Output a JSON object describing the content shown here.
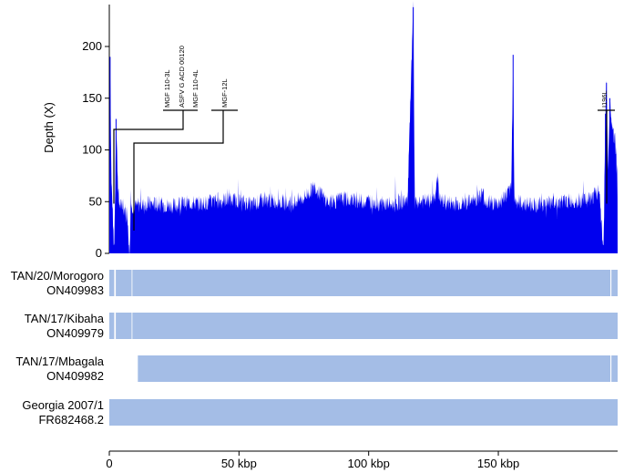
{
  "chart_data": {
    "type": "area",
    "ylabel": "Depth (X)",
    "xlabel": "",
    "y_ticks": [
      0,
      50,
      100,
      150,
      200
    ],
    "ylim": [
      0,
      240
    ],
    "x_ticks": [
      0,
      50,
      100,
      150
    ],
    "x_tick_labels": [
      "0",
      "50 kbp",
      "100 kbp",
      "150 kbp"
    ],
    "xlim_kbp": [
      0,
      196
    ],
    "color": "#0000ee",
    "bar_color": "#a4bde6",
    "coverage": {
      "baseline_depth": 47,
      "points_kbp": [
        0,
        0.3,
        0.8,
        1.2,
        1.8,
        2.2,
        2.6,
        3.0,
        3.4,
        3.8,
        4.5,
        5.2,
        6.0,
        7.0,
        7.6,
        7.9,
        8.2,
        8.6,
        10,
        15,
        20,
        25,
        30,
        35,
        40,
        45,
        50,
        55,
        60,
        65,
        70,
        75,
        79.5,
        80.5,
        85,
        90,
        95,
        100,
        105,
        110,
        115,
        117.2,
        117.8,
        118.4,
        120,
        125,
        126.8,
        127.2,
        130,
        135,
        140,
        144,
        145,
        150,
        155,
        155.7,
        156.2,
        156.8,
        160,
        165,
        170,
        175,
        180,
        185,
        189,
        190.5,
        191.3,
        191.7,
        192.3,
        193,
        194,
        195,
        196
      ],
      "depth_x": [
        55,
        190,
        70,
        48,
        0,
        50,
        130,
        95,
        62,
        48,
        46,
        44,
        42,
        40,
        0,
        0,
        50,
        45,
        46,
        48,
        47,
        46,
        49,
        48,
        50,
        52,
        51,
        47,
        52,
        50,
        48,
        54,
        65,
        60,
        48,
        53,
        51,
        50,
        48,
        47,
        52,
        238,
        45,
        50,
        50,
        51,
        75,
        52,
        49,
        48,
        50,
        58,
        50,
        48,
        62,
        192,
        52,
        50,
        48,
        47,
        49,
        50,
        51,
        52,
        60,
        0,
        135,
        165,
        80,
        150,
        120,
        110,
        65
      ]
    },
    "gene_annotations": [
      {
        "label": "MGF 110-3L",
        "position_kbp": 2.2
      },
      {
        "label": "ASFV G ACD 00120",
        "position_kbp": 2.2
      },
      {
        "label": "MGF 110-4L",
        "position_kbp": 2.2
      },
      {
        "label": "MGF-12L",
        "position_kbp": 9.0
      },
      {
        "label": "I196L",
        "position_kbp": 190.5
      }
    ],
    "genome_tracks": [
      {
        "name": "TAN/20/Morogoro",
        "accession": "ON409983",
        "segments_kbp": [
          [
            0,
            1.9
          ],
          [
            2.5,
            8.6
          ],
          [
            8.9,
            193.2
          ],
          [
            193.6,
            196
          ]
        ]
      },
      {
        "name": "TAN/17/Kibaha",
        "accession": "ON409979",
        "segments_kbp": [
          [
            0,
            1.9
          ],
          [
            2.5,
            8.6
          ],
          [
            8.9,
            196
          ]
        ]
      },
      {
        "name": "TAN/17/Mbagala",
        "accession": "ON409982",
        "segments_kbp": [
          [
            11,
            193.2
          ],
          [
            193.6,
            196
          ]
        ]
      },
      {
        "name": "Georgia 2007/1",
        "accession": "FR682468.2",
        "segments_kbp": [
          [
            0,
            196
          ]
        ]
      }
    ]
  }
}
